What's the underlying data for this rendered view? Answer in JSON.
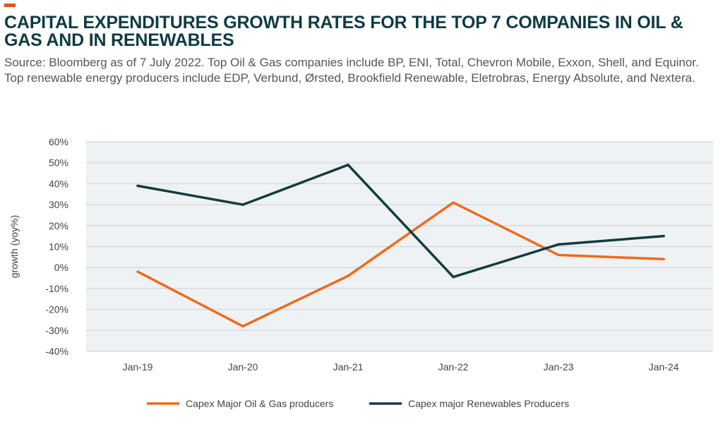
{
  "colors": {
    "accent": "#e8521c",
    "title": "#0e3b43",
    "oil_gas_line": "#f06a1b",
    "renewables_line": "#133c40",
    "plot_background": "#eef2f5",
    "gridline": "#c9cfd4",
    "axis_text": "#444444"
  },
  "header": {
    "title": "CAPITAL EXPENDITURES GROWTH RATES FOR THE TOP 7 COMPANIES IN OIL & GAS AND IN RENEWABLES",
    "subtitle": "Source: Bloomberg as of 7 July 2022. Top Oil & Gas companies include BP, ENI, Total, Chevron Mobile, Exxon, Shell, and Equinor. Top renewable energy producers include EDP, Verbund, Ørsted, Brookfield Renewable, Eletrobras, Energy Absolute, and Nextera."
  },
  "chart_data": {
    "type": "line",
    "title": "",
    "xlabel": "",
    "ylabel": "growth (yoy%)",
    "categories": [
      "Jan-19",
      "Jan-20",
      "Jan-21",
      "Jan-22",
      "Jan-23",
      "Jan-24"
    ],
    "yticks": [
      "60%",
      "50%",
      "40%",
      "30%",
      "20%",
      "10%",
      "0%",
      "-10%",
      "-20%",
      "-30%",
      "-40%"
    ],
    "ylim": [
      -40,
      60
    ],
    "grid": true,
    "legend_position": "bottom",
    "series": [
      {
        "name": "Capex Major Oil & Gas producers",
        "color": "#f06a1b",
        "values": [
          -2,
          -28,
          -4,
          31,
          6,
          4
        ]
      },
      {
        "name": "Capex major Renewables Producers",
        "color": "#133c40",
        "values": [
          39,
          30,
          49,
          -4.5,
          11,
          15
        ]
      }
    ]
  }
}
